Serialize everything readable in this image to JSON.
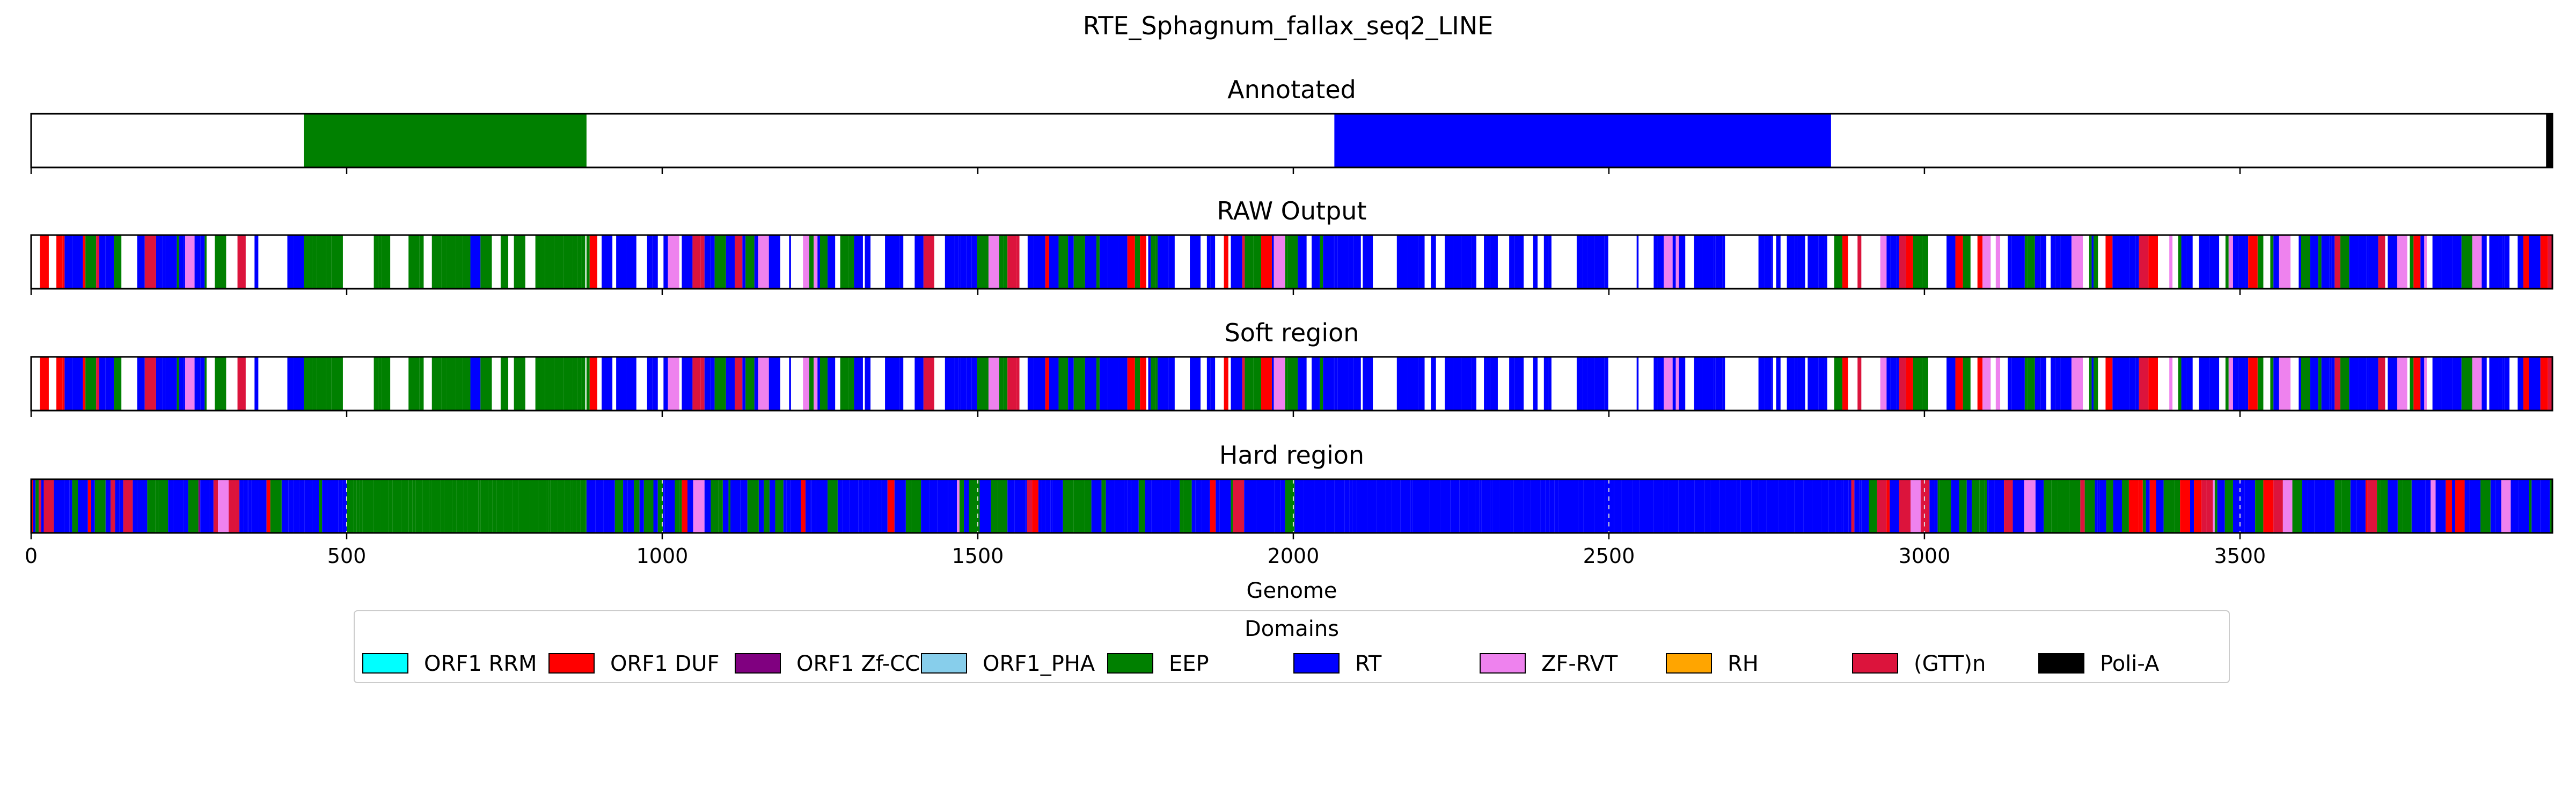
{
  "chart_data": {
    "type": "genome-track",
    "title": "RTE_Sphagnum_fallax_seq2_LINE",
    "xlabel": "Genome",
    "xlim": [
      0,
      3995
    ],
    "xticks": [
      0,
      500,
      1000,
      1500,
      2000,
      2500,
      3000,
      3500
    ],
    "panels": [
      {
        "key": "annotated",
        "name": "Annotated",
        "segments": [
          {
            "start": 432,
            "end": 880,
            "domain": "EEP"
          },
          {
            "start": 2065,
            "end": 2852,
            "domain": "RT"
          },
          {
            "start": 3985,
            "end": 3995,
            "domain": "Poli-A"
          }
        ]
      },
      {
        "key": "raw",
        "name": "RAW Output",
        "profile": [
          {
            "start": 0,
            "end": 432,
            "mix": {
              "RT": 0.55,
              "EEP": 0.15,
              "ORF1 DUF": 0.12,
              "(GTT)n": 0.08,
              "ZF-RVT": 0.05,
              "ORF1 Zf-CCHC": 0.05
            },
            "gap": 0.3
          },
          {
            "start": 432,
            "end": 880,
            "mix": {
              "EEP": 0.9,
              "RT": 0.05,
              "(GTT)n": 0.05
            },
            "gap": 0.4
          },
          {
            "start": 880,
            "end": 2065,
            "mix": {
              "RT": 0.5,
              "EEP": 0.3,
              "ORF1 DUF": 0.07,
              "(GTT)n": 0.07,
              "ZF-RVT": 0.06
            },
            "gap": 0.2
          },
          {
            "start": 2065,
            "end": 2852,
            "mix": {
              "RT": 0.97,
              "ZF-RVT": 0.03
            },
            "gap": 0.45
          },
          {
            "start": 2852,
            "end": 3995,
            "mix": {
              "RT": 0.45,
              "EEP": 0.3,
              "ORF1 DUF": 0.1,
              "(GTT)n": 0.08,
              "ZF-RVT": 0.07
            },
            "gap": 0.18
          }
        ]
      },
      {
        "key": "soft",
        "name": "Soft region",
        "profile": [
          {
            "start": 0,
            "end": 432,
            "mix": {
              "RT": 0.55,
              "EEP": 0.15,
              "ORF1 DUF": 0.12,
              "(GTT)n": 0.08,
              "ZF-RVT": 0.05,
              "ORF1 Zf-CCHC": 0.05
            },
            "gap": 0.3
          },
          {
            "start": 432,
            "end": 880,
            "mix": {
              "EEP": 0.9,
              "RT": 0.05,
              "(GTT)n": 0.05
            },
            "gap": 0.4
          },
          {
            "start": 880,
            "end": 2065,
            "mix": {
              "RT": 0.5,
              "EEP": 0.3,
              "ORF1 DUF": 0.07,
              "(GTT)n": 0.07,
              "ZF-RVT": 0.06
            },
            "gap": 0.2
          },
          {
            "start": 2065,
            "end": 2852,
            "mix": {
              "RT": 0.97,
              "ZF-RVT": 0.03
            },
            "gap": 0.45
          },
          {
            "start": 2852,
            "end": 3995,
            "mix": {
              "RT": 0.45,
              "EEP": 0.3,
              "ORF1 DUF": 0.1,
              "(GTT)n": 0.08,
              "ZF-RVT": 0.07
            },
            "gap": 0.18
          }
        ]
      },
      {
        "key": "hard",
        "name": "Hard region",
        "profile": [
          {
            "start": 0,
            "end": 500,
            "mix": {
              "RT": 0.5,
              "EEP": 0.2,
              "ORF1 DUF": 0.12,
              "(GTT)n": 0.08,
              "ORF1 Zf-CCHC": 0.05,
              "ZF-RVT": 0.05
            },
            "gap": 0
          },
          {
            "start": 500,
            "end": 880,
            "mix": {
              "EEP": 1.0
            },
            "gap": 0
          },
          {
            "start": 880,
            "end": 2065,
            "mix": {
              "RT": 0.55,
              "EEP": 0.3,
              "ORF1 DUF": 0.05,
              "(GTT)n": 0.05,
              "ZF-RVT": 0.05
            },
            "gap": 0
          },
          {
            "start": 2065,
            "end": 2880,
            "mix": {
              "RT": 1.0
            },
            "gap": 0
          },
          {
            "start": 2880,
            "end": 3995,
            "mix": {
              "RT": 0.45,
              "EEP": 0.3,
              "ORF1 DUF": 0.1,
              "(GTT)n": 0.08,
              "ZF-RVT": 0.07
            },
            "gap": 0
          }
        ]
      }
    ],
    "legend": {
      "title": "Domains",
      "placement": "bottom-center",
      "items": [
        {
          "label": "ORF1 RRM",
          "color": "#00ffff"
        },
        {
          "label": "ORF1 DUF",
          "color": "#ff0000"
        },
        {
          "label": "ORF1 Zf-CCHC",
          "color": "#800080"
        },
        {
          "label": "ORF1_PHA",
          "color": "#87ceeb"
        },
        {
          "label": "EEP",
          "color": "#008000"
        },
        {
          "label": "RT",
          "color": "#0000ff"
        },
        {
          "label": "ZF-RVT",
          "color": "#ee82ee"
        },
        {
          "label": "RH",
          "color": "#ffa500"
        },
        {
          "label": "(GTT)n",
          "color": "#dc143c"
        },
        {
          "label": "Poli-A",
          "color": "#000000"
        }
      ]
    }
  }
}
